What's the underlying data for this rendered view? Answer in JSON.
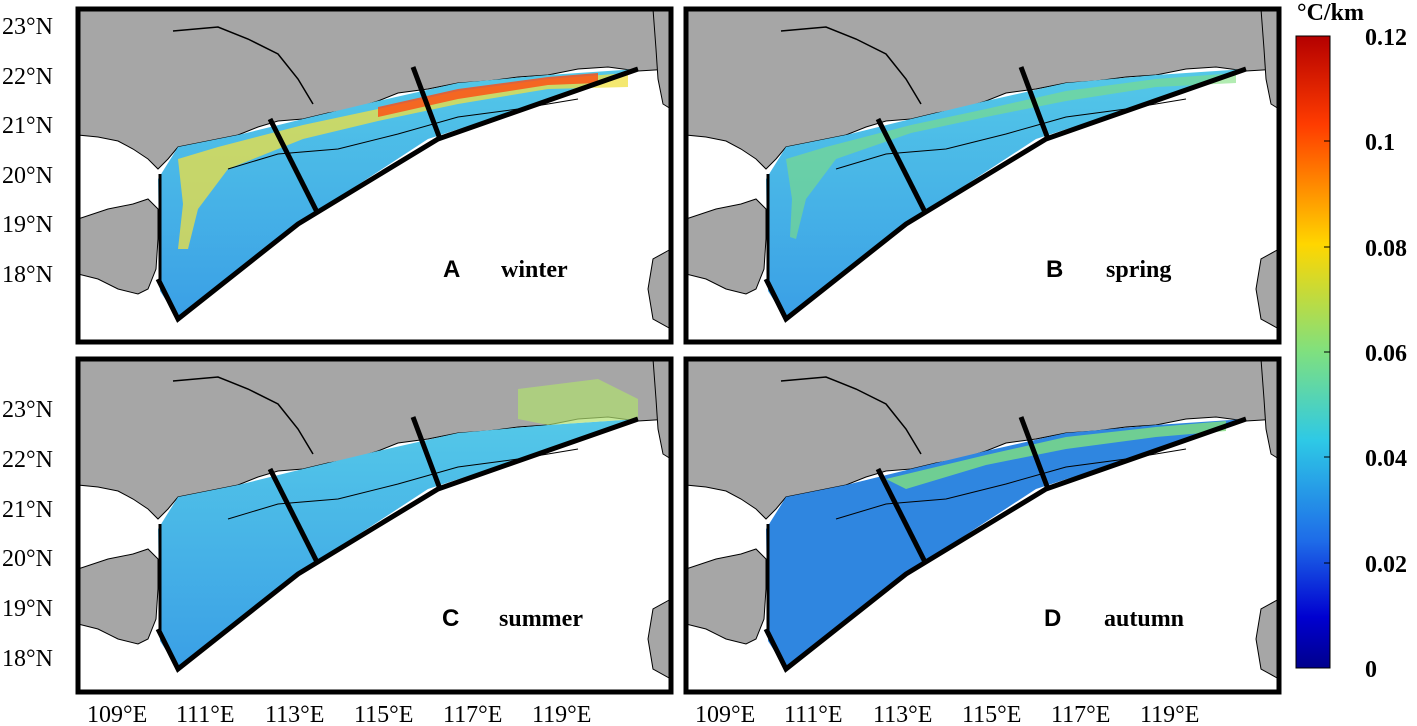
{
  "figure": {
    "colorbar": {
      "unit": "°C/km",
      "ticks": [
        "0.12",
        "0.1",
        "0.08",
        "0.06",
        "0.04",
        "0.02",
        "0"
      ],
      "colors": [
        "#b40000",
        "#ff3c00",
        "#ffd600",
        "#7fe07f",
        "#2ec9e6",
        "#1e6be8",
        "#0000b0",
        "#00008c"
      ]
    },
    "lat_ticks": [
      "23°N",
      "22°N",
      "21°N",
      "20°N",
      "19°N",
      "18°N"
    ],
    "lon_ticks": [
      "109°E",
      "111°E",
      "113°E",
      "115°E",
      "117°E",
      "119°E"
    ],
    "panels": [
      {
        "letter": "A",
        "season": "winter"
      },
      {
        "letter": "B",
        "season": "spring"
      },
      {
        "letter": "C",
        "season": "summer"
      },
      {
        "letter": "D",
        "season": "autumn"
      }
    ],
    "colors": {
      "land": "#a6a6a6",
      "sea": "#ffffff",
      "shelf_low": "#3aa6e8",
      "shelf_mid": "#54c8e8",
      "front": "#f0e040",
      "front_hot": "#ff4a10"
    }
  }
}
